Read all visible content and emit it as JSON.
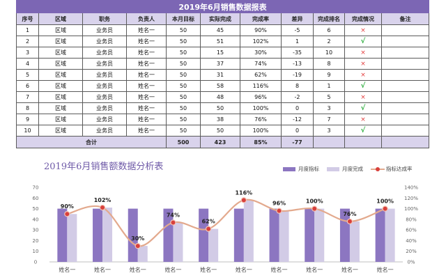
{
  "table": {
    "title": "2019年6月销售数据报表",
    "headers": [
      "序号",
      "区域",
      "职务",
      "负责人",
      "本月目标",
      "实际完成",
      "完成率",
      "差异",
      "完成排名",
      "完成情况",
      "备注"
    ],
    "rows": [
      [
        "1",
        "区域",
        "业务员",
        "姓名一",
        "50",
        "45",
        "90%",
        "-5",
        "6",
        "×",
        ""
      ],
      [
        "2",
        "区域",
        "业务员",
        "姓名一",
        "50",
        "51",
        "102%",
        "1",
        "2",
        "√",
        ""
      ],
      [
        "3",
        "区域",
        "业务员",
        "姓名一",
        "50",
        "15",
        "30%",
        "-35",
        "10",
        "×",
        ""
      ],
      [
        "4",
        "区域",
        "业务员",
        "姓名一",
        "50",
        "37",
        "74%",
        "-13",
        "8",
        "×",
        ""
      ],
      [
        "5",
        "区域",
        "业务员",
        "姓名一",
        "50",
        "31",
        "62%",
        "-19",
        "9",
        "×",
        ""
      ],
      [
        "6",
        "区域",
        "业务员",
        "姓名一",
        "50",
        "58",
        "116%",
        "8",
        "1",
        "√",
        ""
      ],
      [
        "7",
        "区域",
        "业务员",
        "姓名一",
        "50",
        "48",
        "96%",
        "-2",
        "5",
        "×",
        ""
      ],
      [
        "8",
        "区域",
        "业务员",
        "姓名一",
        "50",
        "50",
        "100%",
        "0",
        "3",
        "√",
        ""
      ],
      [
        "9",
        "区域",
        "业务员",
        "姓名一",
        "50",
        "38",
        "76%",
        "-12",
        "7",
        "×",
        ""
      ],
      [
        "10",
        "区域",
        "业务员",
        "姓名一",
        "50",
        "50",
        "100%",
        "0",
        "3",
        "√",
        ""
      ]
    ],
    "total": {
      "label": "合计",
      "target": "500",
      "actual": "423",
      "rate": "85%",
      "diff": "-77"
    }
  },
  "colors": {
    "header_bg": "#7c66b4",
    "subheader_bg": "#d9d3ec",
    "bar_target": "#8c76c1",
    "bar_actual": "#d2cbe6",
    "line": "#e3a98d",
    "marker": "#d8403c",
    "check": "#2fae3f",
    "cross": "#e33b3b"
  },
  "chart_data": {
    "type": "bar",
    "title": "2019年6月销售额数据分析表",
    "categories": [
      "姓名一",
      "姓名一",
      "姓名一",
      "姓名一",
      "姓名一",
      "姓名一",
      "姓名一",
      "姓名一",
      "姓名一",
      "姓名一"
    ],
    "series": [
      {
        "name": "月度指标",
        "type": "bar",
        "axis": "left",
        "values": [
          50,
          50,
          50,
          50,
          50,
          50,
          50,
          50,
          50,
          50
        ]
      },
      {
        "name": "月度完成",
        "type": "bar",
        "axis": "left",
        "values": [
          45,
          51,
          15,
          37,
          31,
          58,
          48,
          50,
          38,
          50
        ]
      },
      {
        "name": "指标达成率",
        "type": "line",
        "axis": "right",
        "values": [
          90,
          102,
          30,
          74,
          62,
          116,
          96,
          100,
          76,
          100
        ],
        "data_labels": [
          "90%",
          "102%",
          "30%",
          "74%",
          "62%",
          "116%",
          "96%",
          "100%",
          "76%",
          "100%"
        ]
      }
    ],
    "ylim": [
      0,
      70
    ],
    "yticks": [
      "0",
      "10",
      "20",
      "30",
      "40",
      "50",
      "60",
      "70"
    ],
    "y2lim": [
      0,
      140
    ],
    "y2ticks": [
      "0%",
      "20%",
      "40%",
      "60%",
      "80%",
      "100%",
      "120%",
      "140%"
    ],
    "grid": false,
    "legend": "top-right"
  }
}
